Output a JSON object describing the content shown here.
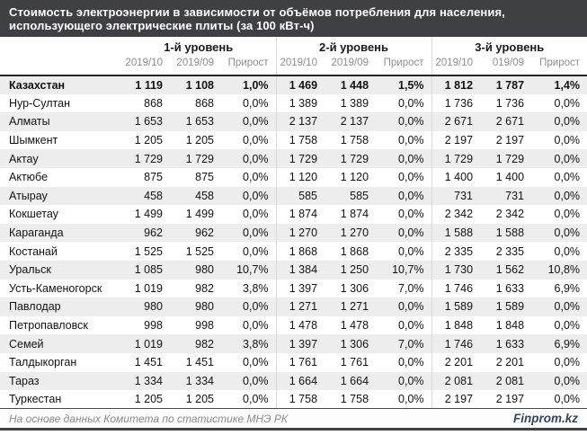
{
  "title": {
    "line1": "Стоимость электроэнергии в зависимости от объёмов потребления для населения,",
    "line2": "использующего электрические плиты (за 100 кВт-ч)"
  },
  "chart_data": {
    "type": "table",
    "title": "Стоимость электроэнергии в зависимости от объёмов потребления для населения, использующего электрические плиты (за 100 кВт-ч)",
    "column_groups": [
      {
        "label": "1-й уровень",
        "columns": [
          "2019/10",
          "2019/09",
          "Прирост"
        ]
      },
      {
        "label": "2-й уровень",
        "columns": [
          "2019/10",
          "2019/09",
          "Прирост"
        ]
      },
      {
        "label": "3-й уровень",
        "columns": [
          "2019/10",
          "019/09",
          "Прирост"
        ]
      }
    ],
    "rows": [
      {
        "name": "Казахстан",
        "bold": true,
        "values": [
          "1 119",
          "1 108",
          "1,0%",
          "1 469",
          "1 448",
          "1,5%",
          "1 812",
          "1 787",
          "1,4%"
        ]
      },
      {
        "name": "Нур-Султан",
        "bold": false,
        "values": [
          "868",
          "868",
          "0,0%",
          "1 389",
          "1 389",
          "0,0%",
          "1 736",
          "1 736",
          "0,0%"
        ]
      },
      {
        "name": "Алматы",
        "bold": false,
        "values": [
          "1 653",
          "1 653",
          "0,0%",
          "2 137",
          "2 137",
          "0,0%",
          "2 671",
          "2 671",
          "0,0%"
        ]
      },
      {
        "name": "Шымкент",
        "bold": false,
        "values": [
          "1 205",
          "1 205",
          "0,0%",
          "1 758",
          "1 758",
          "0,0%",
          "2 197",
          "2 197",
          "0,0%"
        ]
      },
      {
        "name": "Актау",
        "bold": false,
        "values": [
          "1 729",
          "1 729",
          "0,0%",
          "1 729",
          "1 729",
          "0,0%",
          "1 729",
          "1 729",
          "0,0%"
        ]
      },
      {
        "name": "Актюбе",
        "bold": false,
        "values": [
          "875",
          "875",
          "0,0%",
          "1 120",
          "1 120",
          "0,0%",
          "1 400",
          "1 400",
          "0,0%"
        ]
      },
      {
        "name": "Атырау",
        "bold": false,
        "values": [
          "458",
          "458",
          "0,0%",
          "585",
          "585",
          "0,0%",
          "731",
          "731",
          "0,0%"
        ]
      },
      {
        "name": "Кокшетау",
        "bold": false,
        "values": [
          "1 499",
          "1 499",
          "0,0%",
          "1 874",
          "1 874",
          "0,0%",
          "2 342",
          "2 342",
          "0,0%"
        ]
      },
      {
        "name": "Караганда",
        "bold": false,
        "values": [
          "962",
          "962",
          "0,0%",
          "1 270",
          "1 270",
          "0,0%",
          "1 588",
          "1 588",
          "0,0%"
        ]
      },
      {
        "name": "Костанай",
        "bold": false,
        "values": [
          "1 525",
          "1 525",
          "0,0%",
          "1 868",
          "1 868",
          "0,0%",
          "2 335",
          "2 335",
          "0,0%"
        ]
      },
      {
        "name": "Уральск",
        "bold": false,
        "values": [
          "1 085",
          "980",
          "10,7%",
          "1 384",
          "1 250",
          "10,7%",
          "1 730",
          "1 562",
          "10,8%"
        ]
      },
      {
        "name": "Усть-Каменогорск",
        "bold": false,
        "values": [
          "1 019",
          "982",
          "3,8%",
          "1 397",
          "1 306",
          "7,0%",
          "1 746",
          "1 633",
          "6,9%"
        ]
      },
      {
        "name": "Павлодар",
        "bold": false,
        "values": [
          "980",
          "980",
          "0,0%",
          "1 271",
          "1 271",
          "0,0%",
          "1 589",
          "1 589",
          "0,0%"
        ]
      },
      {
        "name": "Петропавловск",
        "bold": false,
        "values": [
          "998",
          "998",
          "0,0%",
          "1 478",
          "1 478",
          "0,0%",
          "1 848",
          "1 848",
          "0,0%"
        ]
      },
      {
        "name": "Семей",
        "bold": false,
        "values": [
          "1 019",
          "982",
          "3,8%",
          "1 397",
          "1 306",
          "7,0%",
          "1 746",
          "1 633",
          "6,9%"
        ]
      },
      {
        "name": "Талдыкорган",
        "bold": false,
        "values": [
          "1 451",
          "1 451",
          "0,0%",
          "1 761",
          "1 761",
          "0,0%",
          "2 201",
          "2 201",
          "0,0%"
        ]
      },
      {
        "name": "Тараз",
        "bold": false,
        "values": [
          "1 334",
          "1 334",
          "0,0%",
          "1 664",
          "1 664",
          "0,0%",
          "2 081",
          "2 081",
          "0,0%"
        ]
      },
      {
        "name": "Туркестан",
        "bold": false,
        "values": [
          "1 205",
          "1 205",
          "0,0%",
          "1 758",
          "1 758",
          "0,0%",
          "2 197",
          "2 197",
          "0,0%"
        ]
      }
    ]
  },
  "footer": {
    "source": "На основе данных Комитета по статистике МНЭ РК",
    "brand": "Finprom.kz"
  },
  "colors": {
    "title_bg": "#3f4043",
    "title_text": "#ffffff",
    "stripe": "#ededed",
    "divider": "#d9d9d9",
    "sub_header_text": "#8e8e8e",
    "thick_border": "#22252b",
    "source_text": "#8a8a8a",
    "brand_text": "#33475b"
  }
}
